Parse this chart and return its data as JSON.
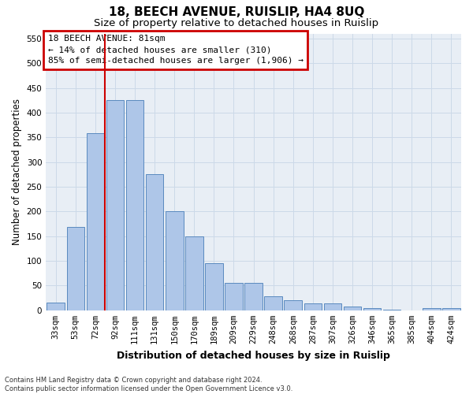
{
  "title": "18, BEECH AVENUE, RUISLIP, HA4 8UQ",
  "subtitle": "Size of property relative to detached houses in Ruislip",
  "xlabel": "Distribution of detached houses by size in Ruislip",
  "ylabel": "Number of detached properties",
  "categories": [
    "33sqm",
    "53sqm",
    "72sqm",
    "92sqm",
    "111sqm",
    "131sqm",
    "150sqm",
    "170sqm",
    "189sqm",
    "209sqm",
    "229sqm",
    "248sqm",
    "268sqm",
    "287sqm",
    "307sqm",
    "326sqm",
    "346sqm",
    "365sqm",
    "385sqm",
    "404sqm",
    "424sqm"
  ],
  "values": [
    15,
    168,
    358,
    425,
    425,
    275,
    200,
    150,
    96,
    55,
    55,
    28,
    21,
    14,
    14,
    7,
    5,
    2,
    0,
    5,
    5
  ],
  "bar_color": "#aec6e8",
  "bar_edge_color": "#5a8abf",
  "vline_color": "#cc0000",
  "vline_pos": 2.5,
  "annotation_line1": "18 BEECH AVENUE: 81sqm",
  "annotation_line2": "← 14% of detached houses are smaller (310)",
  "annotation_line3": "85% of semi-detached houses are larger (1,906) →",
  "annotation_box_color": "#cc0000",
  "ylim": [
    0,
    560
  ],
  "yticks": [
    0,
    50,
    100,
    150,
    200,
    250,
    300,
    350,
    400,
    450,
    500,
    550
  ],
  "grid_color": "#ccd9e8",
  "bg_color": "#e8eef5",
  "footer_line1": "Contains HM Land Registry data © Crown copyright and database right 2024.",
  "footer_line2": "Contains public sector information licensed under the Open Government Licence v3.0.",
  "title_fontsize": 11,
  "subtitle_fontsize": 9.5,
  "xlabel_fontsize": 9,
  "ylabel_fontsize": 8.5,
  "tick_fontsize": 7.5,
  "annotation_fontsize": 8,
  "footer_fontsize": 6
}
